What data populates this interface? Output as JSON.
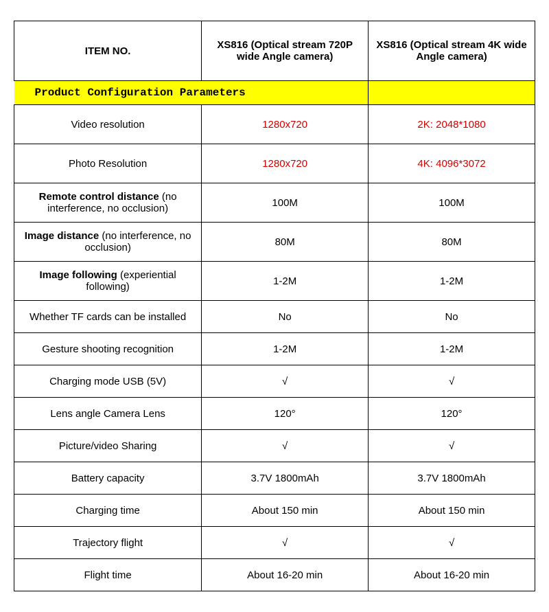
{
  "table": {
    "type": "table",
    "background_color": "#ffffff",
    "border_color": "#000000",
    "highlight_color": "#ffff00",
    "red_text_color": "#d00000",
    "columns": [
      {
        "header": "ITEM NO.",
        "width_pct": 36
      },
      {
        "header": "XS816 (Optical stream 720P wide Angle camera)",
        "width_pct": 32
      },
      {
        "header": "XS816 (Optical stream 4K wide Angle camera)",
        "width_pct": 32
      }
    ],
    "section_title": "Product Configuration Parameters",
    "rows": [
      {
        "label": "Video resolution",
        "label_bold": false,
        "v1": "1280x720",
        "v2": "2K: 2048*1080",
        "red": true,
        "tall": true
      },
      {
        "label": "Photo Resolution",
        "label_bold": false,
        "v1": "1280x720",
        "v2": "4K: 4096*3072",
        "red": true,
        "tall": true
      },
      {
        "label_html": "<span class='label-bold'>Remote control distance</span> (no interference, no occlusion)",
        "v1": "100M",
        "v2": "100M",
        "tall": true
      },
      {
        "label_html": "<span class='label-bold'>Image  distance</span> (no interference, no occlusion)",
        "v1": "80M",
        "v2": "80M",
        "tall": true
      },
      {
        "label_html": "<span class='label-bold'>Image following</span> (experiential following)",
        "v1": "1-2M",
        "v2": "1-2M",
        "tall": true
      },
      {
        "label": "Whether TF cards can be installed",
        "v1": "No",
        "v2": "No"
      },
      {
        "label": "Gesture shooting recognition",
        "v1": "1-2M",
        "v2": "1-2M"
      },
      {
        "label": "Charging mode USB (5V)",
        "v1": "√",
        "v2": "√"
      },
      {
        "label": "Lens angle Camera Lens",
        "v1": "120°",
        "v2": "120°"
      },
      {
        "label": "Picture/video Sharing",
        "v1": "√",
        "v2": "√"
      },
      {
        "label": "Battery capacity",
        "v1": "3.7V 1800mAh",
        "v2": "3.7V 1800mAh"
      },
      {
        "label": "Charging time",
        "v1": "About 150 min",
        "v2": "About 150 min"
      },
      {
        "label": "Trajectory flight",
        "v1": "√",
        "v2": "√"
      },
      {
        "label": "Flight time",
        "v1": "About 16-20 min",
        "v2": "About 16-20 min"
      }
    ]
  }
}
